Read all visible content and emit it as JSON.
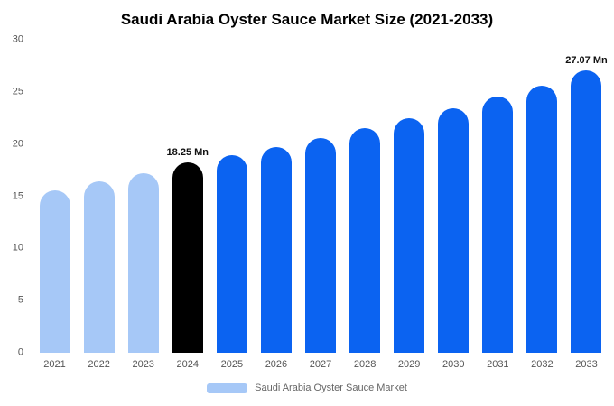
{
  "title": "Saudi Arabia Oyster Sauce Market Size (2021-2033)",
  "legend": {
    "label": "Saudi Arabia Oyster Sauce Market",
    "swatch_color": "#a6c8f7"
  },
  "colors": {
    "light_blue": "#a6c8f7",
    "bright_blue": "#0b63f1",
    "highlight_black": "#000000"
  },
  "chart_data": {
    "type": "bar",
    "title": "Saudi Arabia Oyster Sauce Market Size (2021-2033)",
    "xlabel": "",
    "ylabel": "",
    "ylim": [
      0,
      30
    ],
    "yticks": [
      0,
      5,
      10,
      15,
      20,
      25,
      30
    ],
    "grid": false,
    "legend_position": "bottom",
    "categories": [
      "2021",
      "2022",
      "2023",
      "2024",
      "2025",
      "2026",
      "2027",
      "2028",
      "2029",
      "2030",
      "2031",
      "2032",
      "2033"
    ],
    "values": [
      15.6,
      16.4,
      17.2,
      18.25,
      18.9,
      19.75,
      20.6,
      21.5,
      22.5,
      23.45,
      24.55,
      25.6,
      27.07
    ],
    "bar_colors": [
      "#a6c8f7",
      "#a6c8f7",
      "#a6c8f7",
      "#000000",
      "#0b63f1",
      "#0b63f1",
      "#0b63f1",
      "#0b63f1",
      "#0b63f1",
      "#0b63f1",
      "#0b63f1",
      "#0b63f1",
      "#0b63f1"
    ],
    "annotations": [
      {
        "category": "2024",
        "text": "18.25 Mn"
      },
      {
        "category": "2033",
        "text": "27.07 Mn"
      }
    ]
  }
}
